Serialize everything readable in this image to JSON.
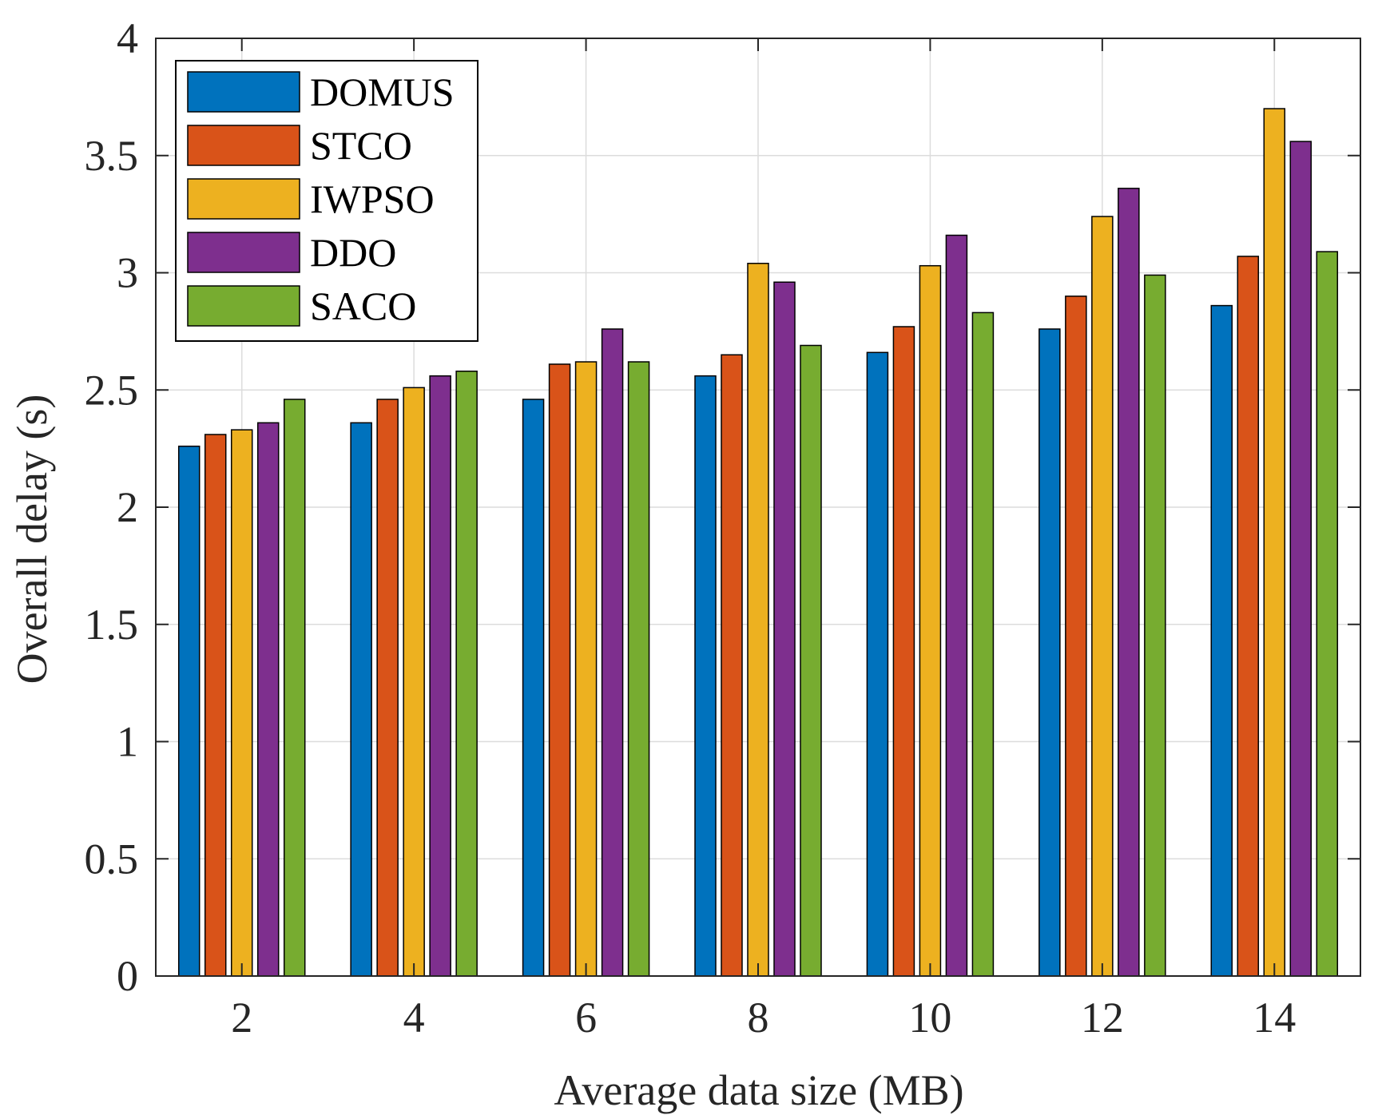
{
  "chart_data": {
    "type": "bar",
    "xlabel": "Average data size (MB)",
    "ylabel": "Overall delay (s)",
    "categories": [
      "2",
      "4",
      "6",
      "8",
      "10",
      "12",
      "14"
    ],
    "ylim": [
      0,
      4
    ],
    "yticks": [
      "0",
      "0.5",
      "1",
      "1.5",
      "2",
      "2.5",
      "3",
      "3.5",
      "4"
    ],
    "grid": true,
    "legend_position": "top-left",
    "series": [
      {
        "name": "DOMUS",
        "color": "#0072BD",
        "values": [
          2.26,
          2.36,
          2.46,
          2.56,
          2.66,
          2.76,
          2.86
        ]
      },
      {
        "name": "STCO",
        "color": "#D95319",
        "values": [
          2.31,
          2.46,
          2.61,
          2.65,
          2.77,
          2.9,
          3.07
        ]
      },
      {
        "name": "IWPSO",
        "color": "#EDB120",
        "values": [
          2.33,
          2.51,
          2.62,
          3.04,
          3.03,
          3.24,
          3.7
        ]
      },
      {
        "name": "DDO",
        "color": "#7E2F8E",
        "values": [
          2.36,
          2.56,
          2.76,
          2.96,
          3.16,
          3.36,
          3.56
        ]
      },
      {
        "name": "SACO",
        "color": "#77AC30",
        "values": [
          2.46,
          2.58,
          2.62,
          2.69,
          2.83,
          2.99,
          3.09
        ]
      }
    ]
  }
}
